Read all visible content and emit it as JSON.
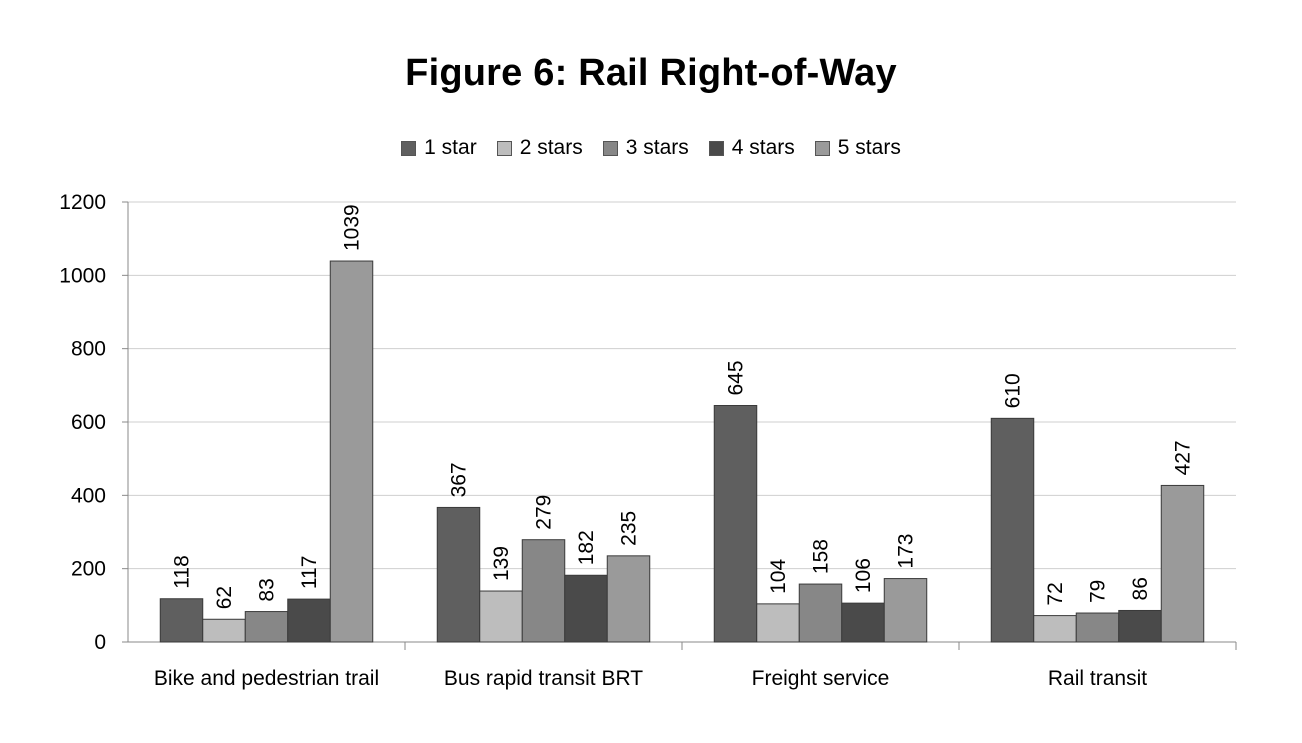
{
  "chart_data": {
    "type": "bar",
    "title": "Figure 6: Rail Right-of-Way",
    "xlabel": "",
    "ylabel": "",
    "ylim": [
      0,
      1200
    ],
    "yticks": [
      0,
      200,
      400,
      600,
      800,
      1000,
      1200
    ],
    "grid": true,
    "legend_position": "top",
    "categories": [
      "Bike and pedestrian trail",
      "Bus rapid transit BRT",
      "Freight service",
      "Rail transit"
    ],
    "series": [
      {
        "name": "1 star",
        "color": "#5f5f5f",
        "values": [
          118,
          367,
          645,
          610
        ]
      },
      {
        "name": "2 stars",
        "color": "#bdbdbd",
        "values": [
          62,
          139,
          104,
          72
        ]
      },
      {
        "name": "3 stars",
        "color": "#878787",
        "values": [
          83,
          279,
          158,
          79
        ]
      },
      {
        "name": "4 stars",
        "color": "#4a4a4a",
        "values": [
          117,
          182,
          106,
          86
        ]
      },
      {
        "name": "5 stars",
        "color": "#9a9a9a",
        "values": [
          1039,
          235,
          173,
          427
        ]
      }
    ]
  }
}
